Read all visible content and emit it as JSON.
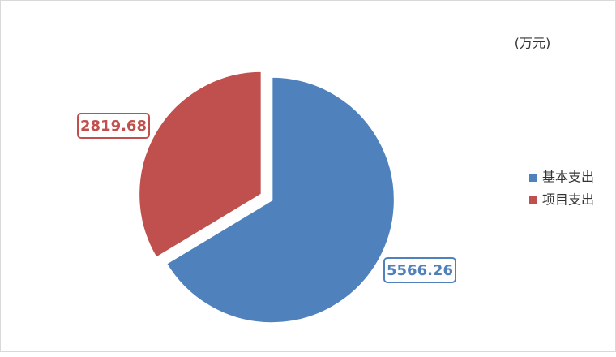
{
  "chart_data": {
    "type": "pie",
    "unit": "(万元)",
    "categories": [
      "基本支出",
      "项目支出"
    ],
    "values": [
      5566.26,
      2819.68
    ],
    "colors": [
      "#4f81bd",
      "#c0504d"
    ],
    "legend": "right"
  }
}
